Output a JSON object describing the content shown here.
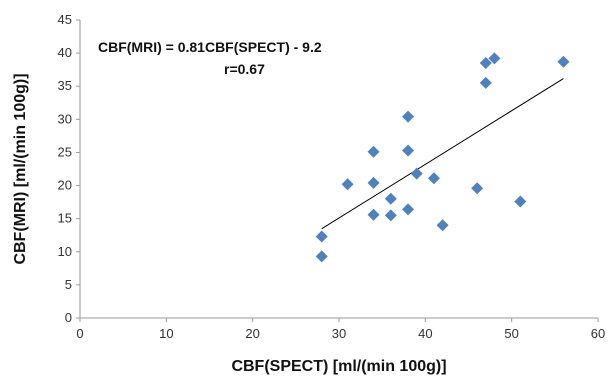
{
  "chart_data": {
    "type": "scatter",
    "title": "",
    "xlabel": "CBF(SPECT) [ml/(min 100g)]",
    "ylabel": "CBF(MRI) [ml/(min 100g)]",
    "xlim": [
      0,
      60
    ],
    "ylim": [
      0,
      45
    ],
    "xticks": [
      "0",
      "10",
      "20",
      "30",
      "40",
      "50",
      "60"
    ],
    "yticks": [
      "0",
      "5",
      "10",
      "15",
      "20",
      "25",
      "30",
      "35",
      "40",
      "45"
    ],
    "grid": false,
    "legend": "none",
    "marker": "diamond",
    "marker_color": "#4f81bd",
    "trendline_color": "#000000",
    "points": [
      [
        28,
        12.3
      ],
      [
        28,
        9.3
      ],
      [
        31,
        20.2
      ],
      [
        34,
        25.1
      ],
      [
        34,
        20.4
      ],
      [
        34,
        15.6
      ],
      [
        36,
        18.0
      ],
      [
        36,
        15.5
      ],
      [
        38,
        30.4
      ],
      [
        38,
        25.3
      ],
      [
        38,
        16.4
      ],
      [
        39,
        21.8
      ],
      [
        41,
        21.1
      ],
      [
        42,
        14.0
      ],
      [
        46,
        19.6
      ],
      [
        47,
        38.5
      ],
      [
        47,
        35.5
      ],
      [
        48,
        39.2
      ],
      [
        51,
        17.6
      ],
      [
        56,
        38.7
      ]
    ],
    "trendline": {
      "slope": 0.81,
      "intercept": -9.2,
      "x_range": [
        28,
        56
      ]
    },
    "annotations": {
      "equation": "CBF(MRI) = 0.81CBF(SPECT) - 9.2",
      "r_value": "r=0.67"
    }
  }
}
